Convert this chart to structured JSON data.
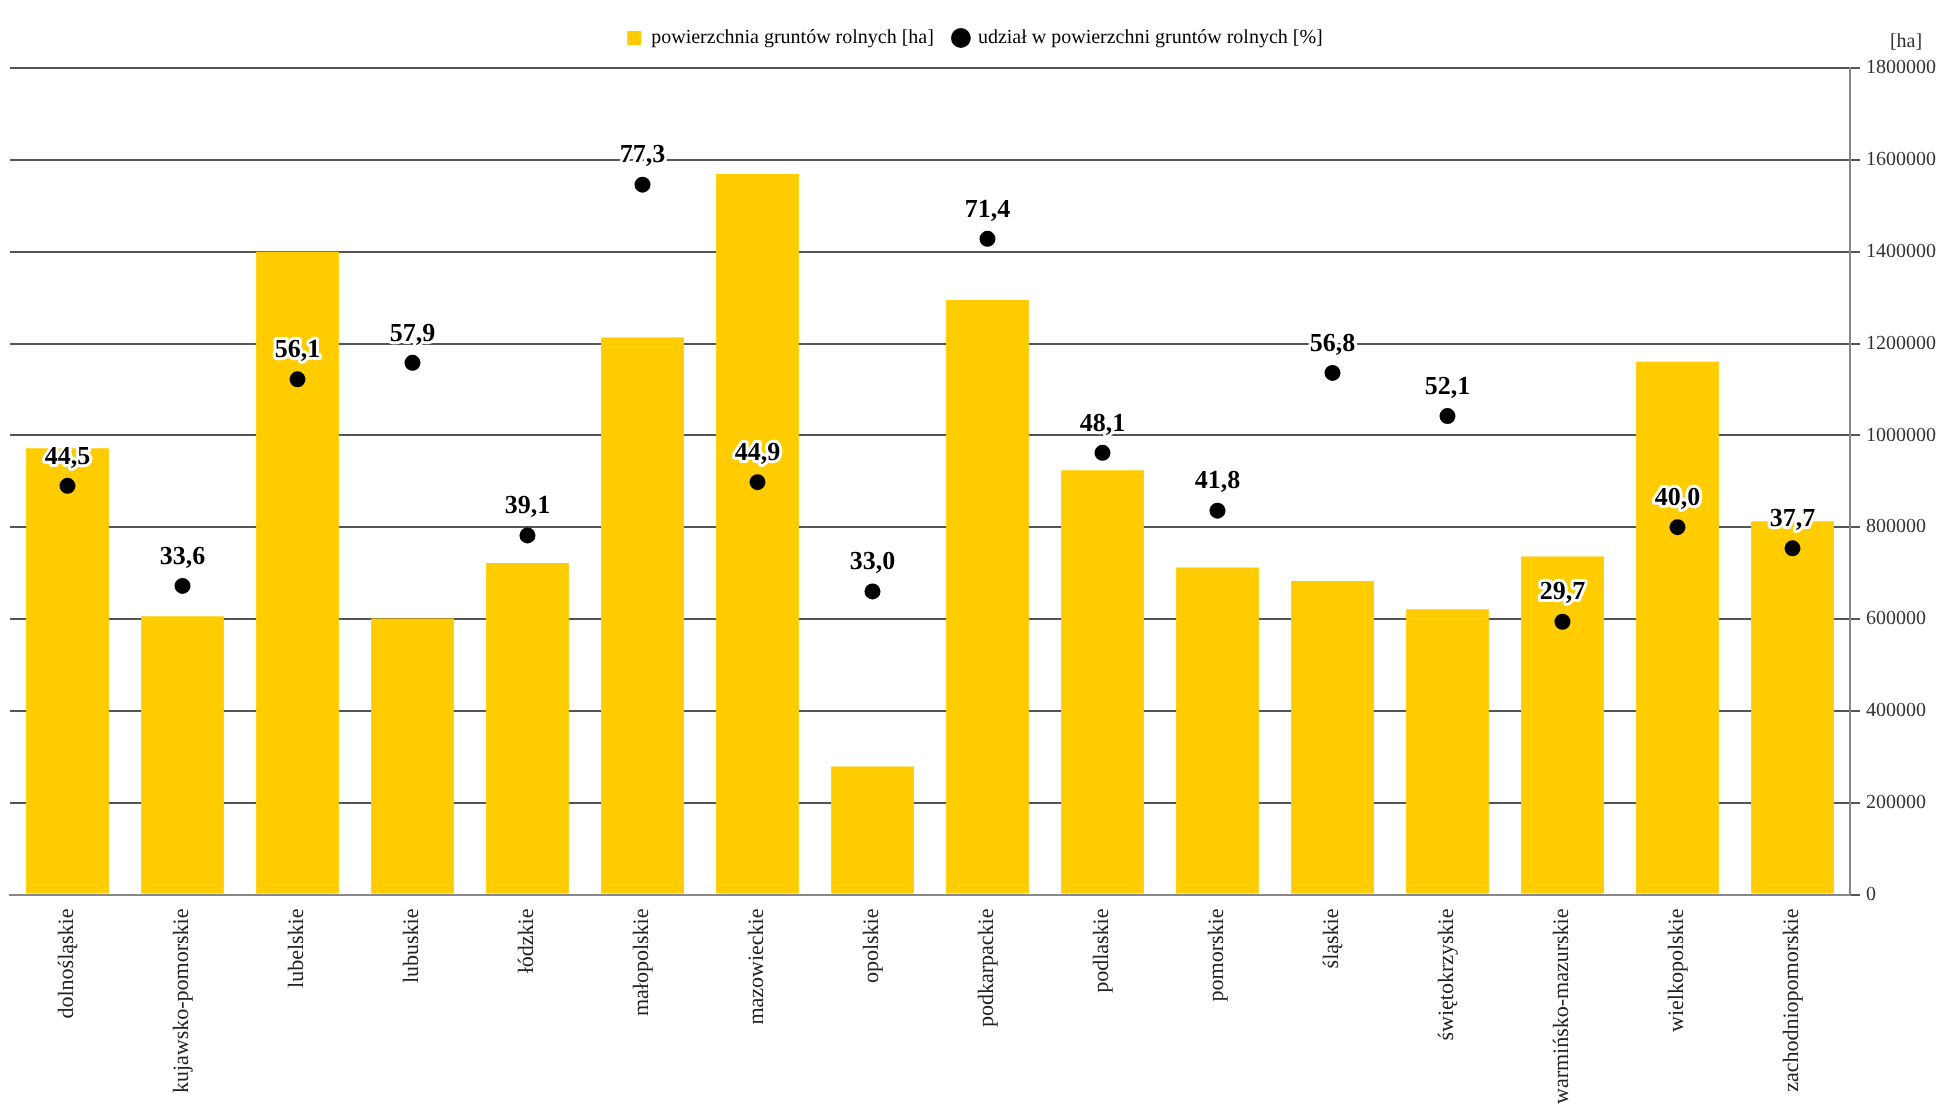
{
  "chart_data": {
    "type": "bar",
    "categories": [
      "dolnośląskie",
      "kujawsko-pomorskie",
      "lubelskie",
      "lubuskie",
      "łódzkie",
      "małopolskie",
      "mazowieckie",
      "opolskie",
      "podkarpackie",
      "podlaskie",
      "pomorskie",
      "śląskie",
      "świętokrzyskie",
      "warmińsko-mazurskie",
      "wielkopolskie",
      "zachodniopomorskie"
    ],
    "series": [
      {
        "name": "powierzchnia gruntów rolnych [ha]",
        "color": "#ffcc00",
        "values": [
          972000,
          606000,
          1400000,
          601000,
          722000,
          1213000,
          1569000,
          279000,
          1295000,
          924000,
          712000,
          683000,
          621000,
          736000,
          1160000,
          813000
        ]
      },
      {
        "name": "udział w powierzchni gruntów rolnych [%]",
        "type": "scatter",
        "axis": "y2",
        "color": "#000000",
        "marker": "circle",
        "values": [
          44.5,
          33.6,
          56.1,
          57.9,
          39.1,
          77.3,
          44.9,
          33.0,
          71.4,
          48.1,
          41.8,
          56.8,
          52.1,
          29.7,
          40.0,
          37.7
        ],
        "value_labels": [
          "44,5",
          "33,6",
          "56,1",
          "57,9",
          "39,1",
          "77,3",
          "44,9",
          "33,0",
          "71,4",
          "48,1",
          "41,8",
          "56,8",
          "52,1",
          "29,7",
          "40,0",
          "37,7"
        ]
      }
    ],
    "ylabel": "[ha]",
    "ylim": [
      0,
      1800000
    ],
    "yticks": [
      0,
      200000,
      400000,
      600000,
      800000,
      1000000,
      1200000,
      1400000,
      1600000,
      1800000
    ],
    "y2lim": [
      0,
      90
    ],
    "grid": "y",
    "legend": "top"
  }
}
